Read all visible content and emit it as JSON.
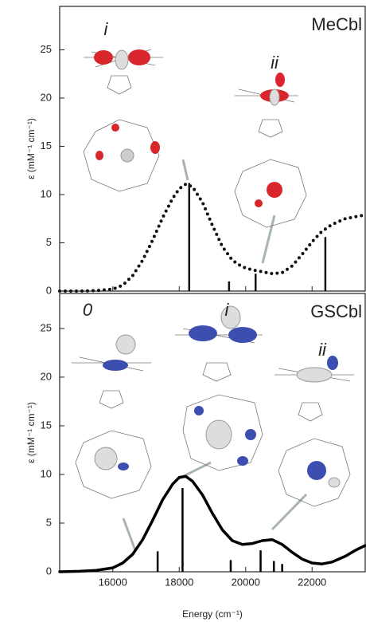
{
  "chart_data": [
    {
      "type": "line",
      "panel_label": "MeCbl",
      "annotations": [
        "i",
        "ii"
      ],
      "ylabel": "ε (mM⁻¹ cm⁻¹)",
      "xlim": [
        14400,
        23600
      ],
      "ylim": [
        0,
        29.5
      ],
      "xticks": [
        16000,
        18000,
        20000,
        22000
      ],
      "yticks": [
        0,
        5,
        10,
        15,
        20,
        25
      ],
      "curve": {
        "style": "dotted",
        "color": "#111",
        "x": [
          14400,
          15000,
          15500,
          16000,
          16300,
          16600,
          16900,
          17200,
          17500,
          17800,
          18000,
          18200,
          18400,
          18700,
          19000,
          19300,
          19600,
          19900,
          20200,
          20500,
          20800,
          21100,
          21400,
          21700,
          22000,
          22300,
          22600,
          23000,
          23300,
          23600
        ],
        "values": [
          0,
          0,
          0.05,
          0.2,
          0.6,
          1.6,
          3.2,
          5.3,
          7.6,
          9.6,
          10.6,
          11.1,
          10.8,
          9.2,
          6.8,
          4.6,
          3.2,
          2.5,
          2.2,
          2.0,
          1.8,
          1.9,
          2.6,
          3.8,
          5.1,
          6.2,
          6.9,
          7.5,
          7.7,
          7.9
        ]
      },
      "sticks": {
        "color": "#111",
        "x": [
          18300,
          19500,
          20300,
          22400
        ],
        "values": [
          11.2,
          1.0,
          1.8,
          5.6
        ]
      }
    },
    {
      "type": "line",
      "panel_label": "GSCbl",
      "annotations": [
        "0",
        "i",
        "ii"
      ],
      "ylabel": "ε (mM⁻¹ cm⁻¹)",
      "xlabel": "Energy (cm⁻¹)",
      "xlim": [
        14400,
        23600
      ],
      "ylim": [
        0,
        28.6
      ],
      "xticks": [
        16000,
        18000,
        20000,
        22000
      ],
      "yticks": [
        0,
        5,
        10,
        15,
        20,
        25
      ],
      "curve": {
        "style": "solid",
        "color": "#000",
        "x": [
          14400,
          15000,
          15500,
          16000,
          16300,
          16600,
          16900,
          17200,
          17500,
          17800,
          18000,
          18200,
          18400,
          18700,
          19000,
          19300,
          19600,
          19900,
          20200,
          20500,
          20800,
          21100,
          21400,
          21700,
          22000,
          22300,
          22600,
          23000,
          23300,
          23600
        ],
        "values": [
          0,
          0.05,
          0.15,
          0.4,
          0.9,
          1.8,
          3.3,
          5.3,
          7.4,
          9.0,
          9.7,
          9.8,
          9.3,
          7.9,
          6.0,
          4.3,
          3.2,
          2.8,
          2.9,
          3.2,
          3.3,
          2.8,
          2.0,
          1.3,
          0.9,
          0.8,
          1.0,
          1.6,
          2.2,
          2.7
        ]
      },
      "sticks": {
        "color": "#000",
        "x": [
          17350,
          18100,
          19550,
          20450,
          20850,
          21100
        ],
        "values": [
          2.1,
          8.6,
          1.2,
          2.2,
          1.1,
          0.8
        ]
      }
    }
  ]
}
